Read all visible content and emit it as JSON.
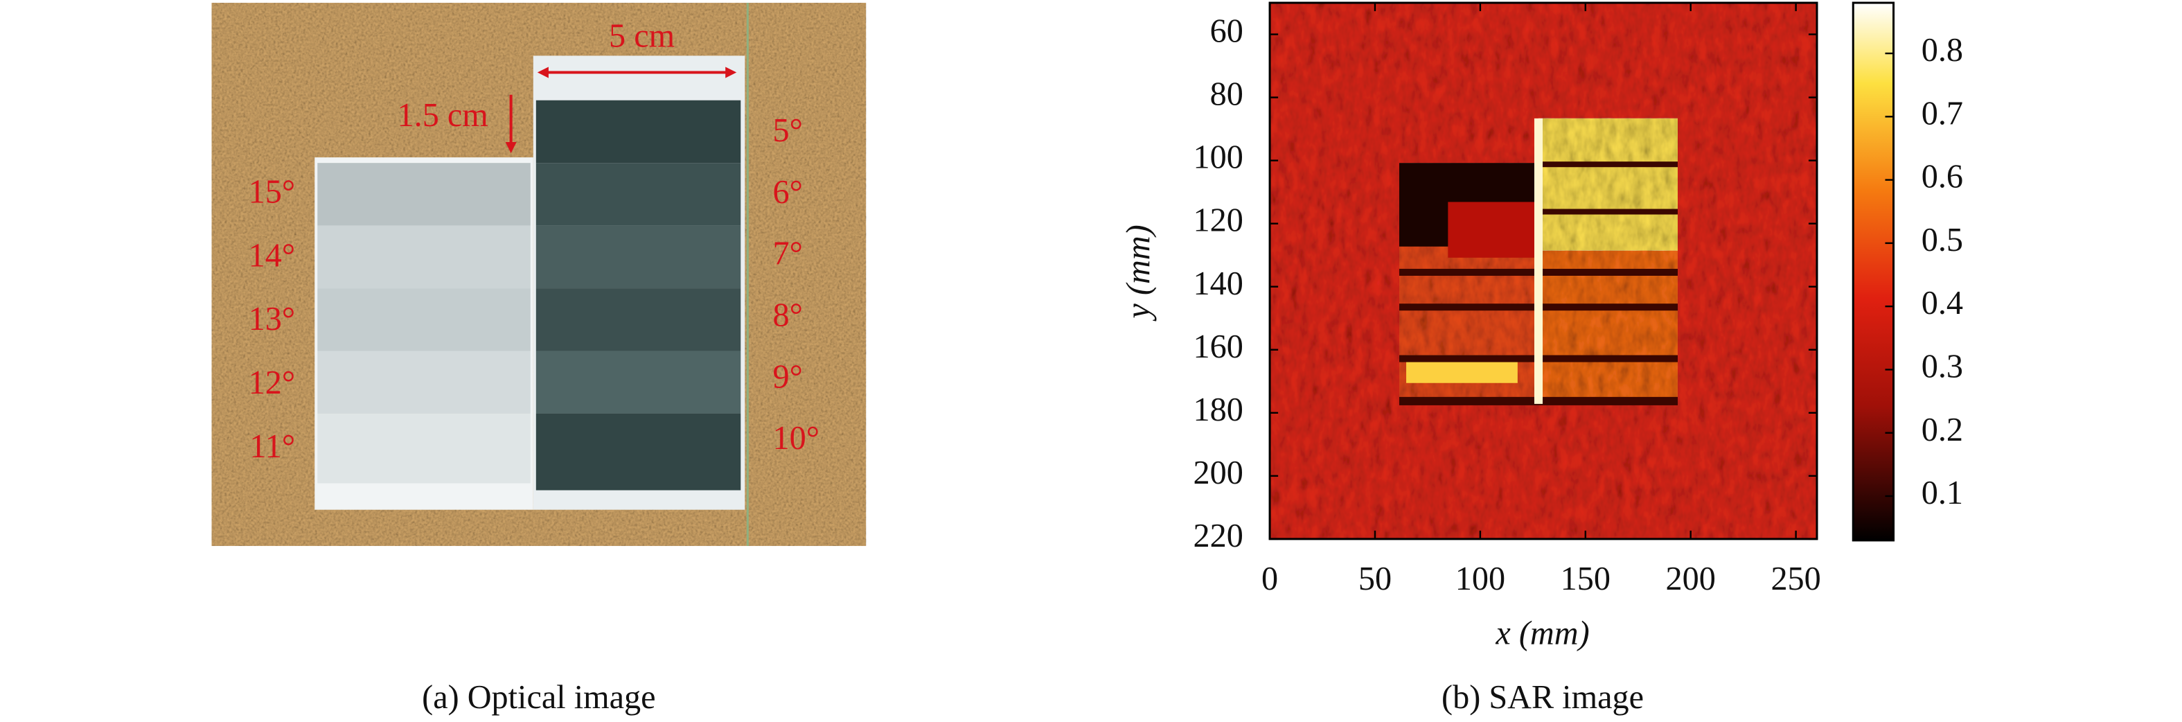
{
  "figure": {
    "a": {
      "caption": "(a) Optical image",
      "width_label": "5 cm",
      "height_label": "1.5 cm",
      "right_angles": [
        "5°",
        "6°",
        "7°",
        "8°",
        "9°",
        "10°"
      ],
      "left_angles": [
        "15°",
        "14°",
        "13°",
        "12°",
        "11°"
      ]
    },
    "b": {
      "caption": "(b) SAR image",
      "x_label": "x (mm)",
      "y_label": "y (mm)",
      "xlim": [
        0,
        260
      ],
      "xticks": [
        0,
        50,
        100,
        150,
        200,
        250
      ],
      "ylim": [
        50,
        220
      ],
      "yticks": [
        60,
        80,
        100,
        120,
        140,
        160,
        180,
        200,
        220
      ],
      "colorbar": {
        "lim": [
          0.03,
          0.88
        ],
        "ticks": [
          0.1,
          0.2,
          0.3,
          0.4,
          0.5,
          0.6,
          0.7,
          0.8
        ]
      }
    }
  }
}
